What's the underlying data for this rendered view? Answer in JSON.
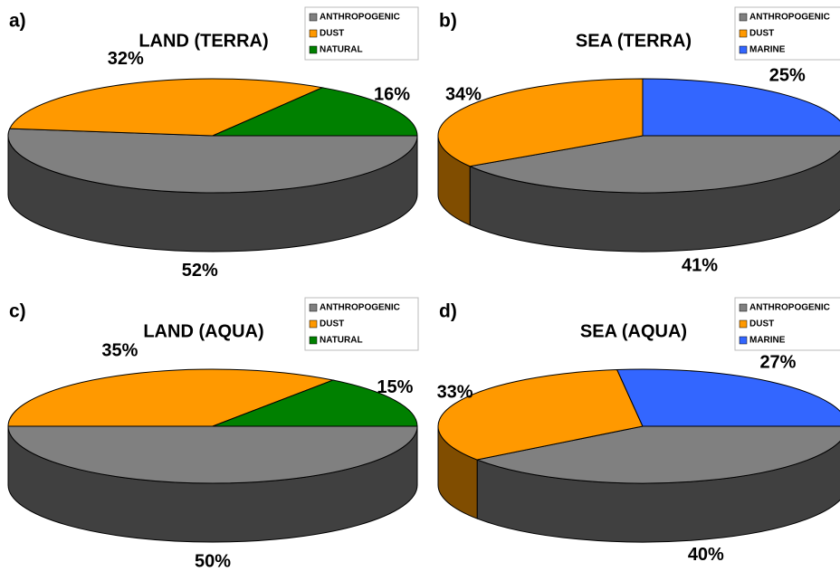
{
  "chart_data": [
    {
      "type": "pie",
      "panel_label": "a)",
      "title": "LAND (TERRA)",
      "categories": [
        "ANTHROPOGENIC",
        "DUST",
        "NATURAL"
      ],
      "values": [
        52,
        32,
        16
      ],
      "value_labels": [
        "52%",
        "32%",
        "16%"
      ],
      "colors": [
        "#808080",
        "#ff9900",
        "#008000"
      ]
    },
    {
      "type": "pie",
      "panel_label": "b)",
      "title": "SEA (TERRA)",
      "categories": [
        "ANTHROPOGENIC",
        "DUST",
        "MARINE"
      ],
      "values": [
        41,
        34,
        25
      ],
      "value_labels": [
        "41%",
        "34%",
        "25%"
      ],
      "colors": [
        "#808080",
        "#ff9900",
        "#3366ff"
      ]
    },
    {
      "type": "pie",
      "panel_label": "c)",
      "title": "LAND (AQUA)",
      "categories": [
        "ANTHROPOGENIC",
        "DUST",
        "NATURAL"
      ],
      "values": [
        50,
        35,
        15
      ],
      "value_labels": [
        "50%",
        "35%",
        "15%"
      ],
      "colors": [
        "#808080",
        "#ff9900",
        "#008000"
      ]
    },
    {
      "type": "pie",
      "panel_label": "d)",
      "title": "SEA (AQUA)",
      "categories": [
        "ANTHROPOGENIC",
        "DUST",
        "MARINE"
      ],
      "values": [
        40,
        33,
        27
      ],
      "value_labels": [
        "40%",
        "33%",
        "27%"
      ],
      "colors": [
        "#808080",
        "#ff9900",
        "#3366ff"
      ]
    }
  ]
}
